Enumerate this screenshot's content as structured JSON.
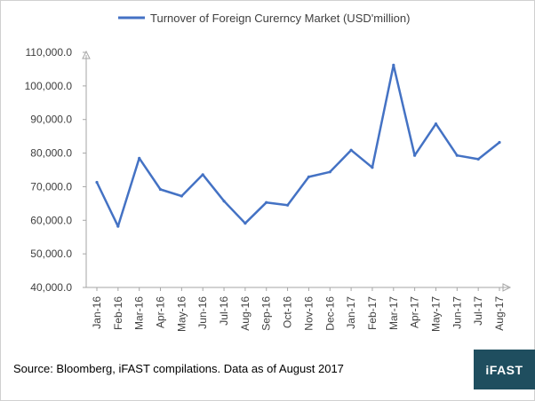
{
  "colors": {
    "series": "#4472c4",
    "axis": "#a6a6a6",
    "logo_bg": "#1f4e5f",
    "text": "#404040"
  },
  "footer": {
    "source": "Source: Bloomberg, iFAST compilations. Data as of August 2017",
    "logo": "iFAST"
  },
  "chart_data": {
    "type": "line",
    "title": "",
    "xlabel": "",
    "ylabel": "",
    "legend_position": "top-center",
    "grid": false,
    "ylim": [
      40000,
      110000
    ],
    "y_ticks": [
      "40,000.0",
      "50,000.0",
      "60,000.0",
      "70,000.0",
      "80,000.0",
      "90,000.0",
      "100,000.0",
      "110,000.0"
    ],
    "categories": [
      "Jan-16",
      "Feb-16",
      "Mar-16",
      "Apr-16",
      "May-16",
      "Jun-16",
      "Jul-16",
      "Aug-16",
      "Sep-16",
      "Oct-16",
      "Nov-16",
      "Dec-16",
      "Jan-17",
      "Feb-17",
      "Mar-17",
      "Apr-17",
      "May-17",
      "Jun-17",
      "Jul-17",
      "Aug-17"
    ],
    "series": [
      {
        "name": "Turnover of Foreign Curerncy Market (USD'million)",
        "values": [
          71300,
          58200,
          78500,
          69200,
          67200,
          73600,
          65700,
          59100,
          65300,
          64500,
          72900,
          74400,
          80900,
          75700,
          106200,
          79300,
          88700,
          79300,
          78200,
          83200
        ]
      }
    ]
  }
}
